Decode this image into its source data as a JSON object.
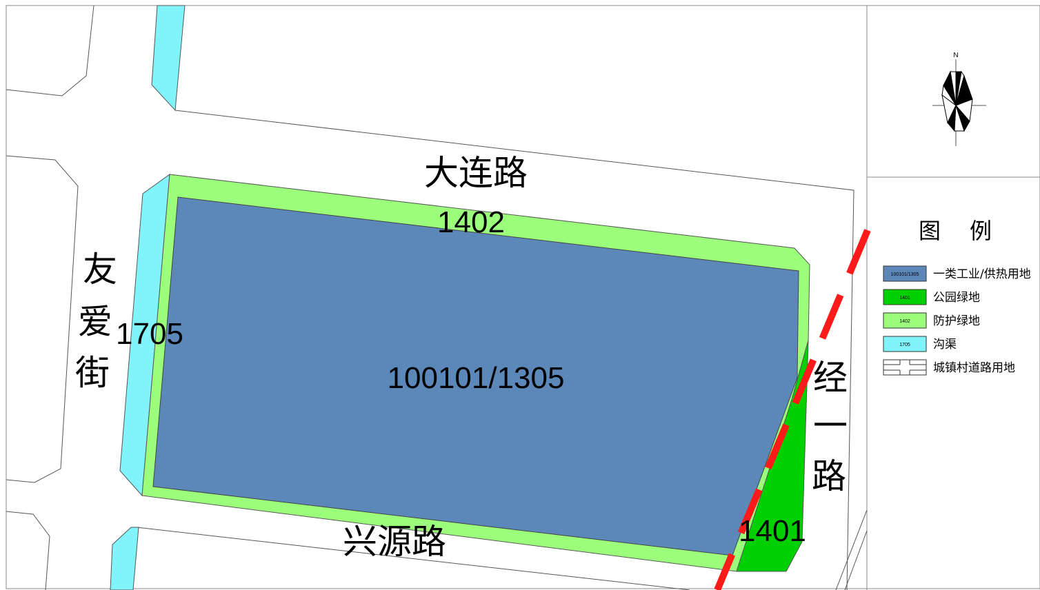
{
  "roads": {
    "dalian": "大连路",
    "xingyuan": "兴源路",
    "youai": [
      "友",
      "爱",
      "街"
    ],
    "jingyi": [
      "经",
      "一",
      "路"
    ]
  },
  "parcels": {
    "industrial": "100101/1305",
    "green_buffer_north": "1402",
    "canal_west": "1705",
    "park": "1401"
  },
  "north_arrow": {
    "label": "N"
  },
  "legend": {
    "title": [
      "图",
      "例"
    ],
    "items": [
      {
        "code": "100101/1305",
        "label": "一类工业/供热用地",
        "color": "#5b87b9"
      },
      {
        "code": "1401",
        "label": "公园绿地",
        "color": "#00d000"
      },
      {
        "code": "1402",
        "label": "防护绿地",
        "color": "#9cff7c"
      },
      {
        "code": "1705",
        "label": "沟渠",
        "color": "#80f4fa"
      },
      {
        "code": "",
        "label": "城镇村道路用地",
        "color": "#ffffff"
      }
    ]
  },
  "colors": {
    "boundary_dash": "#ff1a1a",
    "line": "#555555"
  }
}
